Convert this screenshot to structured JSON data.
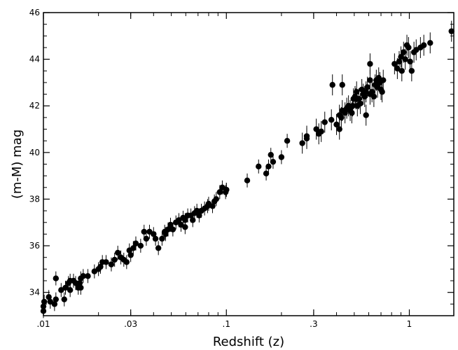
{
  "chart_data": {
    "type": "scatter",
    "title": "",
    "xlabel": "Redshift (z)",
    "ylabel": "(m-M) mag",
    "xscale": "log",
    "xlim": [
      0.01,
      1.75
    ],
    "ylim": [
      33,
      46
    ],
    "grid": false,
    "legend": "none",
    "marker_color": "#000000",
    "x_ticks": [
      {
        "value": 0.01,
        "label": ".01"
      },
      {
        "value": 0.03,
        "label": ".03"
      },
      {
        "value": 0.1,
        "label": ".1"
      },
      {
        "value": 0.3,
        "label": ".3"
      },
      {
        "value": 1,
        "label": "1"
      }
    ],
    "y_ticks": [
      {
        "value": 34,
        "label": "34"
      },
      {
        "value": 36,
        "label": "36"
      },
      {
        "value": 38,
        "label": "38"
      },
      {
        "value": 40,
        "label": "40"
      },
      {
        "value": 42,
        "label": "42"
      },
      {
        "value": 44,
        "label": "44"
      },
      {
        "value": 46,
        "label": "46"
      }
    ],
    "points": [
      [
        0.01,
        33.2
      ],
      [
        0.01,
        33.4
      ],
      [
        0.0101,
        33.6
      ],
      [
        0.0107,
        33.8
      ],
      [
        0.0109,
        33.6
      ],
      [
        0.0115,
        33.5
      ],
      [
        0.0117,
        33.7
      ],
      [
        0.0117,
        34.6
      ],
      [
        0.0125,
        34.1
      ],
      [
        0.013,
        33.7
      ],
      [
        0.0132,
        34.2
      ],
      [
        0.0137,
        34.4
      ],
      [
        0.014,
        34.5
      ],
      [
        0.0146,
        34.5
      ],
      [
        0.015,
        34.4
      ],
      [
        0.0155,
        34.2
      ],
      [
        0.0158,
        34.4
      ],
      [
        0.016,
        34.6
      ],
      [
        0.0165,
        34.7
      ],
      [
        0.0175,
        34.7
      ],
      [
        0.019,
        34.9
      ],
      [
        0.02,
        35.0
      ],
      [
        0.0205,
        35.1
      ],
      [
        0.021,
        35.3
      ],
      [
        0.022,
        35.3
      ],
      [
        0.0235,
        35.2
      ],
      [
        0.0245,
        35.4
      ],
      [
        0.0255,
        35.7
      ],
      [
        0.0265,
        35.5
      ],
      [
        0.0275,
        35.4
      ],
      [
        0.0285,
        35.3
      ],
      [
        0.0295,
        35.8
      ],
      [
        0.03,
        35.6
      ],
      [
        0.031,
        35.9
      ],
      [
        0.032,
        36.1
      ],
      [
        0.034,
        36.0
      ],
      [
        0.0365,
        36.3
      ],
      [
        0.038,
        36.6
      ],
      [
        0.04,
        36.5
      ],
      [
        0.041,
        36.3
      ],
      [
        0.0425,
        35.9
      ],
      [
        0.0445,
        36.3
      ],
      [
        0.0465,
        36.5
      ],
      [
        0.048,
        36.7
      ],
      [
        0.0495,
        36.9
      ],
      [
        0.051,
        36.7
      ],
      [
        0.053,
        37.0
      ],
      [
        0.055,
        37.1
      ],
      [
        0.0565,
        36.9
      ],
      [
        0.058,
        37.2
      ],
      [
        0.0595,
        37.1
      ],
      [
        0.0615,
        37.3
      ],
      [
        0.064,
        37.3
      ],
      [
        0.0655,
        37.1
      ],
      [
        0.067,
        37.4
      ],
      [
        0.069,
        37.5
      ],
      [
        0.071,
        37.3
      ],
      [
        0.073,
        37.5
      ],
      [
        0.076,
        37.6
      ],
      [
        0.079,
        37.7
      ],
      [
        0.08,
        37.8
      ],
      [
        0.084,
        37.7
      ],
      [
        0.086,
        37.9
      ],
      [
        0.088,
        38.0
      ],
      [
        0.092,
        38.3
      ],
      [
        0.095,
        38.5
      ],
      [
        0.099,
        38.3
      ],
      [
        0.1,
        38.4
      ],
      [
        0.13,
        38.8
      ],
      [
        0.15,
        39.4
      ],
      [
        0.165,
        39.1
      ],
      [
        0.17,
        39.4
      ],
      [
        0.175,
        39.9
      ],
      [
        0.18,
        39.6
      ],
      [
        0.2,
        39.8
      ],
      [
        0.215,
        40.5
      ],
      [
        0.26,
        40.4
      ],
      [
        0.275,
        40.6
      ],
      [
        0.31,
        41.0
      ],
      [
        0.33,
        40.9
      ],
      [
        0.345,
        41.3
      ],
      [
        0.375,
        41.4
      ],
      [
        0.4,
        41.2
      ],
      [
        0.415,
        41.6
      ],
      [
        0.425,
        41.5
      ],
      [
        0.43,
        41.8
      ],
      [
        0.445,
        41.7
      ],
      [
        0.455,
        41.9
      ],
      [
        0.465,
        42.0
      ],
      [
        0.475,
        41.8
      ],
      [
        0.485,
        41.7
      ],
      [
        0.495,
        42.3
      ],
      [
        0.505,
        42.4
      ],
      [
        0.515,
        42.6
      ],
      [
        0.52,
        42.0
      ],
      [
        0.53,
        42.3
      ],
      [
        0.54,
        42.1
      ],
      [
        0.55,
        42.7
      ],
      [
        0.56,
        42.5
      ],
      [
        0.57,
        42.4
      ],
      [
        0.58,
        42.6
      ],
      [
        0.59,
        42.8
      ],
      [
        0.61,
        42.5
      ],
      [
        0.625,
        42.6
      ],
      [
        0.64,
        42.4
      ],
      [
        0.65,
        42.9
      ],
      [
        0.66,
        43.1
      ],
      [
        0.67,
        42.8
      ],
      [
        0.68,
        43.2
      ],
      [
        0.69,
        43.0
      ],
      [
        0.7,
        42.7
      ],
      [
        0.71,
        42.6
      ],
      [
        0.72,
        43.1
      ],
      [
        0.43,
        42.9
      ],
      [
        0.51,
        42.3
      ],
      [
        0.58,
        41.6
      ],
      [
        0.415,
        41.0
      ],
      [
        0.32,
        40.8
      ],
      [
        0.49,
        42.0
      ],
      [
        0.83,
        43.8
      ],
      [
        0.86,
        43.6
      ],
      [
        0.88,
        43.9
      ],
      [
        0.9,
        44.1
      ],
      [
        0.91,
        43.5
      ],
      [
        0.93,
        44.3
      ],
      [
        0.95,
        44.0
      ],
      [
        0.97,
        44.6
      ],
      [
        0.99,
        44.5
      ],
      [
        1.01,
        43.9
      ],
      [
        1.03,
        43.5
      ],
      [
        1.06,
        44.3
      ],
      [
        1.09,
        44.4
      ],
      [
        1.15,
        44.5
      ],
      [
        1.2,
        44.6
      ],
      [
        1.3,
        44.7
      ],
      [
        1.7,
        45.2
      ],
      [
        0.38,
        42.9
      ],
      [
        0.61,
        43.8
      ],
      [
        0.275,
        40.7
      ],
      [
        0.0355,
        36.6
      ],
      [
        0.014,
        34.1
      ],
      [
        0.016,
        34.2
      ],
      [
        0.046,
        36.6
      ],
      [
        0.0595,
        36.8
      ],
      [
        0.1,
        38.4
      ],
      [
        0.61,
        43.1
      ]
    ]
  }
}
